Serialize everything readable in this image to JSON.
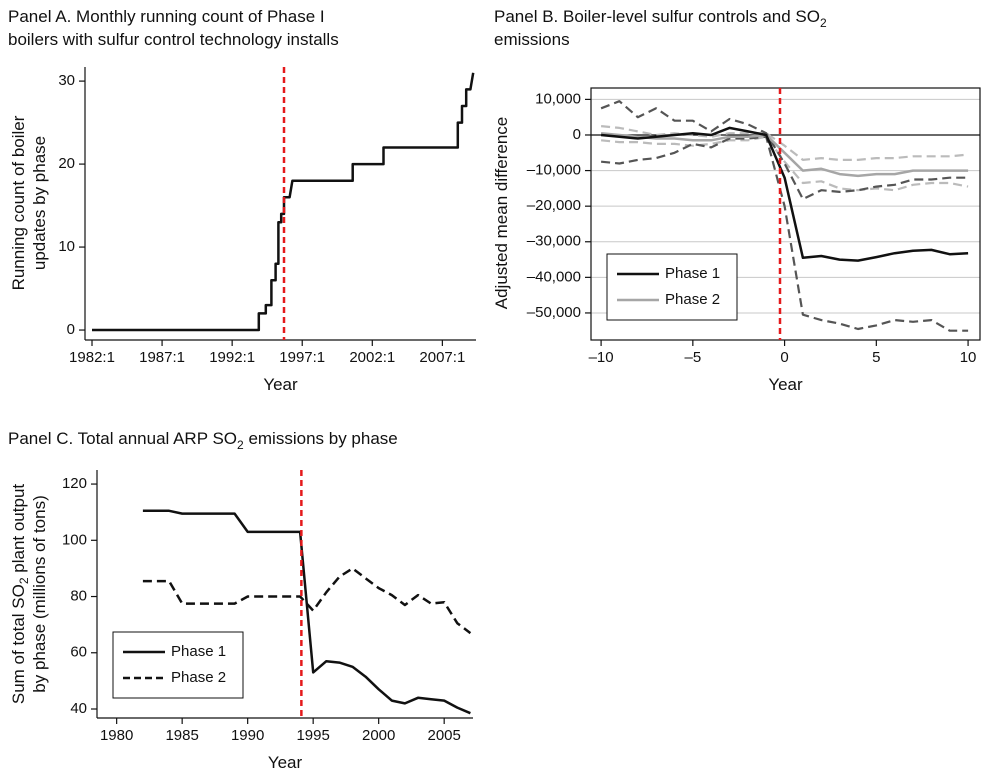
{
  "chart_data": [
    {
      "type": "line",
      "title": [
        [
          "Panel A. Monthly running count of Phase I"
        ],
        [
          "boilers with sulfur control technology installs"
        ]
      ],
      "ylabel": [
        [
          "Running count of boiler"
        ],
        [
          "updates by phase"
        ]
      ],
      "xlabel": "Year",
      "x": [
        1982,
        1993.9,
        1993.9,
        1994.4,
        1994.4,
        1994.8,
        1994.8,
        1995.1,
        1995.1,
        1995.3,
        1995.3,
        1995.5,
        1995.5,
        1995.7,
        1995.7,
        1996.1,
        1996.3,
        2000.6,
        2000.6,
        2002.8,
        2002.8,
        2008.1,
        2008.1,
        2008.4,
        2008.4,
        2008.7,
        2008.7,
        2009,
        2009.2
      ],
      "series": [
        {
          "color": "#111111",
          "dash": false,
          "values": [
            0,
            0,
            2,
            2,
            3,
            3,
            6,
            6,
            8,
            8,
            13,
            13,
            14,
            14,
            16,
            16,
            18,
            18,
            20,
            20,
            22,
            22,
            25,
            25,
            27,
            27,
            29,
            29,
            31
          ]
        }
      ],
      "xlim": [
        1981.5,
        2009.4
      ],
      "ylim": [
        -1.2,
        31.7
      ],
      "xticks": [
        {
          "value": 1982,
          "label": "1982:1"
        },
        {
          "value": 1987,
          "label": "1987:1"
        },
        {
          "value": 1992,
          "label": "1992:1"
        },
        {
          "value": 1997,
          "label": "1997:1"
        },
        {
          "value": 2002,
          "label": "2002:1"
        },
        {
          "value": 2007,
          "label": "2007:1"
        }
      ],
      "yticks": [
        0,
        10,
        20,
        30
      ],
      "vline": 1995.7,
      "vline_color": "#e41a1c",
      "grid": false,
      "frame": false
    },
    {
      "type": "line",
      "title": [
        [
          "Panel B. Boiler-level sulfur controls and SO",
          {
            "sub": "2"
          }
        ],
        [
          "emissions"
        ]
      ],
      "ylabel": [
        [
          "Adjusted mean difference"
        ]
      ],
      "xlabel": "Year",
      "x": [
        -10,
        -9,
        -8,
        -7,
        -6,
        -5,
        -4,
        -3,
        -2,
        -1,
        0,
        1,
        2,
        3,
        4,
        5,
        6,
        7,
        8,
        9,
        10
      ],
      "series": [
        {
          "color": "#bbbbbb",
          "dash": true,
          "values": [
            2500,
            2000,
            1000,
            0,
            500,
            0,
            -500,
            500,
            500,
            500,
            -3000,
            -7000,
            -6500,
            -7000,
            -7000,
            -6500,
            -6500,
            -6000,
            -6000,
            -6000,
            -5500
          ]
        },
        {
          "color": "#bbbbbb",
          "dash": true,
          "values": [
            -1500,
            -2000,
            -2000,
            -2500,
            -2500,
            -3000,
            -2500,
            -1500,
            -1500,
            -500,
            -7500,
            -13500,
            -13000,
            -15000,
            -15500,
            -15000,
            -15500,
            -14000,
            -13500,
            -13500,
            -14500
          ]
        },
        {
          "color": "#555555",
          "dash": true,
          "values": [
            7500,
            9500,
            5000,
            7500,
            4000,
            4000,
            1000,
            4500,
            3000,
            500,
            -8000,
            -18000,
            -15500,
            -16000,
            -15500,
            -14500,
            -14000,
            -12500,
            -12500,
            -12000,
            -12000
          ]
        },
        {
          "color": "#555555",
          "dash": true,
          "values": [
            -7500,
            -8000,
            -7000,
            -6500,
            -5000,
            -2500,
            -3500,
            -1000,
            -1000,
            -500,
            -20000,
            -50500,
            -52000,
            -53000,
            -54500,
            -53500,
            -52000,
            -52500,
            -52000,
            -55000,
            -55000
          ]
        },
        {
          "name": "Phase 2",
          "color": "#a6a6a6",
          "dash": false,
          "values": [
            500,
            0,
            -500,
            -1000,
            -1000,
            -1500,
            -1500,
            -500,
            -500,
            0,
            -5000,
            -10000,
            -9500,
            -11000,
            -11500,
            -11000,
            -11000,
            -10000,
            -10000,
            -10000,
            -10000
          ]
        },
        {
          "name": "Phase 1",
          "color": "#111111",
          "dash": false,
          "values": [
            0,
            -500,
            -1000,
            -500,
            0,
            500,
            0,
            2000,
            1000,
            0,
            -12000,
            -34500,
            -34000,
            -35000,
            -35300,
            -34300,
            -33200,
            -32500,
            -32300,
            -33500,
            -33200
          ]
        }
      ],
      "legend_order": [
        5,
        4
      ],
      "xlim": [
        -10.55,
        10.65
      ],
      "ylim": [
        -57600,
        13200
      ],
      "xticks": [
        {
          "value": -10,
          "label": "–10"
        },
        {
          "value": -5,
          "label": "–5"
        },
        0,
        5,
        10
      ],
      "yticks": [
        {
          "value": 10000,
          "label": "10,000"
        },
        0,
        {
          "value": -10000,
          "label": "–10,000"
        },
        {
          "value": -20000,
          "label": "–20,000"
        },
        {
          "value": -30000,
          "label": "–30,000"
        },
        {
          "value": -40000,
          "label": "–40,000"
        },
        {
          "value": -50000,
          "label": "–50,000"
        }
      ],
      "hline": 0,
      "vline": -0.25,
      "vline_color": "#e41a1c",
      "grid": true,
      "frame": true,
      "legend": "lower left"
    },
    {
      "type": "line",
      "title": [
        [
          "Panel C. Total annual ARP SO",
          {
            "sub": "2"
          },
          " emissions by phase"
        ]
      ],
      "ylabel": [
        [
          "Sum of total SO",
          {
            "sub": "2"
          },
          " plant output"
        ],
        [
          "by phase (millions of tons)"
        ]
      ],
      "xlabel": "Year",
      "x": [
        1982,
        1983,
        1984,
        1985,
        1986,
        1987,
        1988,
        1989,
        1990,
        1991,
        1992,
        1993,
        1994,
        1995,
        1996,
        1997,
        1998,
        1999,
        2000,
        2001,
        2002,
        2003,
        2004,
        2005,
        2006,
        2007
      ],
      "series": [
        {
          "name": "Phase 1",
          "color": "#111111",
          "dash": false,
          "values": [
            110.5,
            110.5,
            110.5,
            109.5,
            109.5,
            109.5,
            109.5,
            109.5,
            103,
            103,
            103,
            103,
            103,
            53,
            57,
            56.5,
            55,
            51.5,
            47,
            43,
            42,
            44,
            43.5,
            43,
            40.5,
            38.5
          ]
        },
        {
          "name": "Phase 2",
          "color": "#111111",
          "dash": true,
          "values": [
            85.5,
            85.5,
            85.5,
            77.5,
            77.5,
            77.5,
            77.5,
            77.5,
            80,
            80,
            80,
            80,
            80,
            75,
            81.5,
            87,
            90,
            86.5,
            83,
            80.5,
            77,
            80.5,
            77.5,
            78,
            70.5,
            67
          ]
        }
      ],
      "legend_order": [
        0,
        1
      ],
      "xlim": [
        1978.5,
        2007.2
      ],
      "ylim": [
        36.8,
        125
      ],
      "xticks": [
        1980,
        1985,
        1990,
        1995,
        2000,
        2005
      ],
      "yticks": [
        40,
        60,
        80,
        100,
        120
      ],
      "vline": 1994.1,
      "vline_color": "#e41a1c",
      "grid": false,
      "frame": false,
      "legend": "lower left"
    }
  ]
}
